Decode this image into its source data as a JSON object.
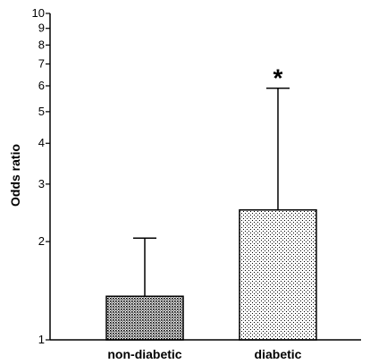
{
  "chart_data": {
    "type": "bar",
    "ylabel": "Odds ratio",
    "yscale": "log",
    "ylim": [
      1,
      10
    ],
    "yticks": [
      1,
      2,
      3,
      4,
      5,
      6,
      7,
      8,
      9,
      10
    ],
    "categories": [
      "non-diabetic",
      "diabetic"
    ],
    "values": [
      1.36,
      2.5
    ],
    "error_upper": [
      2.05,
      5.9
    ],
    "annotations": [
      "",
      "*"
    ],
    "bar_fill": [
      "dense-dots",
      "sparse-dots"
    ],
    "grid": false
  }
}
